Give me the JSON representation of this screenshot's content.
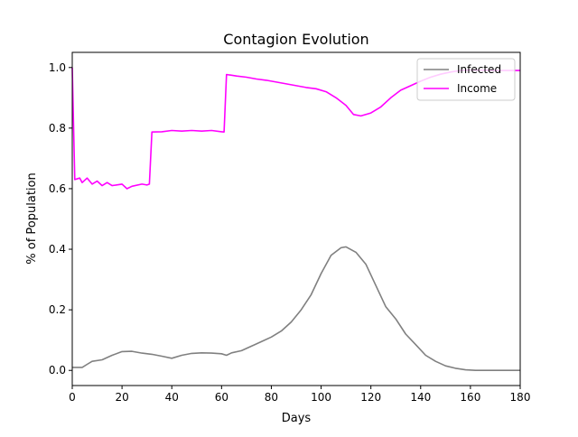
{
  "chart_data": {
    "type": "line",
    "title": "Contagion Evolution",
    "xlabel": "Days",
    "ylabel": "% of Population",
    "xlim": [
      0,
      180
    ],
    "ylim": [
      -0.05,
      1.05
    ],
    "x_ticks": [
      0,
      20,
      40,
      60,
      80,
      100,
      120,
      140,
      160,
      180
    ],
    "y_ticks": [
      0.0,
      0.2,
      0.4,
      0.6,
      0.8,
      1.0
    ],
    "x_tick_labels": [
      "0",
      "20",
      "40",
      "60",
      "80",
      "100",
      "120",
      "140",
      "160",
      "180"
    ],
    "y_tick_labels": [
      "0.0",
      "0.2",
      "0.4",
      "0.6",
      "0.8",
      "1.0"
    ],
    "grid": false,
    "legend_position": "top-right",
    "series": [
      {
        "name": "Infected",
        "color": "#808080",
        "points": [
          [
            0,
            0.01
          ],
          [
            4,
            0.01
          ],
          [
            6,
            0.02
          ],
          [
            8,
            0.03
          ],
          [
            12,
            0.035
          ],
          [
            16,
            0.05
          ],
          [
            20,
            0.062
          ],
          [
            24,
            0.063
          ],
          [
            28,
            0.057
          ],
          [
            32,
            0.053
          ],
          [
            36,
            0.047
          ],
          [
            40,
            0.04
          ],
          [
            44,
            0.05
          ],
          [
            48,
            0.056
          ],
          [
            52,
            0.058
          ],
          [
            56,
            0.057
          ],
          [
            60,
            0.055
          ],
          [
            62,
            0.05
          ],
          [
            64,
            0.058
          ],
          [
            68,
            0.065
          ],
          [
            72,
            0.08
          ],
          [
            76,
            0.095
          ],
          [
            80,
            0.11
          ],
          [
            84,
            0.13
          ],
          [
            88,
            0.16
          ],
          [
            92,
            0.2
          ],
          [
            96,
            0.25
          ],
          [
            100,
            0.32
          ],
          [
            104,
            0.38
          ],
          [
            108,
            0.405
          ],
          [
            110,
            0.408
          ],
          [
            114,
            0.39
          ],
          [
            118,
            0.35
          ],
          [
            122,
            0.28
          ],
          [
            126,
            0.21
          ],
          [
            130,
            0.17
          ],
          [
            134,
            0.12
          ],
          [
            138,
            0.085
          ],
          [
            142,
            0.05
          ],
          [
            146,
            0.03
          ],
          [
            150,
            0.015
          ],
          [
            154,
            0.007
          ],
          [
            158,
            0.002
          ],
          [
            162,
            0.0
          ],
          [
            170,
            0.0
          ],
          [
            180,
            0.0
          ]
        ]
      },
      {
        "name": "Income",
        "color": "#ff00ff",
        "points": [
          [
            0,
            1.0
          ],
          [
            1,
            0.63
          ],
          [
            3,
            0.635
          ],
          [
            4,
            0.62
          ],
          [
            6,
            0.635
          ],
          [
            8,
            0.615
          ],
          [
            10,
            0.625
          ],
          [
            12,
            0.61
          ],
          [
            14,
            0.62
          ],
          [
            16,
            0.61
          ],
          [
            20,
            0.615
          ],
          [
            22,
            0.6
          ],
          [
            24,
            0.608
          ],
          [
            28,
            0.615
          ],
          [
            30,
            0.612
          ],
          [
            31,
            0.615
          ],
          [
            32,
            0.787
          ],
          [
            36,
            0.788
          ],
          [
            40,
            0.792
          ],
          [
            44,
            0.79
          ],
          [
            48,
            0.792
          ],
          [
            52,
            0.79
          ],
          [
            56,
            0.792
          ],
          [
            60,
            0.788
          ],
          [
            61,
            0.787
          ],
          [
            62,
            0.977
          ],
          [
            66,
            0.972
          ],
          [
            70,
            0.968
          ],
          [
            74,
            0.962
          ],
          [
            78,
            0.958
          ],
          [
            82,
            0.952
          ],
          [
            86,
            0.946
          ],
          [
            90,
            0.94
          ],
          [
            94,
            0.934
          ],
          [
            98,
            0.93
          ],
          [
            102,
            0.92
          ],
          [
            106,
            0.9
          ],
          [
            110,
            0.875
          ],
          [
            113,
            0.845
          ],
          [
            116,
            0.84
          ],
          [
            120,
            0.85
          ],
          [
            124,
            0.87
          ],
          [
            128,
            0.9
          ],
          [
            132,
            0.925
          ],
          [
            136,
            0.94
          ],
          [
            140,
            0.955
          ],
          [
            144,
            0.968
          ],
          [
            148,
            0.978
          ],
          [
            152,
            0.985
          ],
          [
            156,
            0.99
          ],
          [
            160,
            0.992
          ],
          [
            170,
            0.99
          ],
          [
            180,
            0.99
          ]
        ]
      }
    ]
  }
}
